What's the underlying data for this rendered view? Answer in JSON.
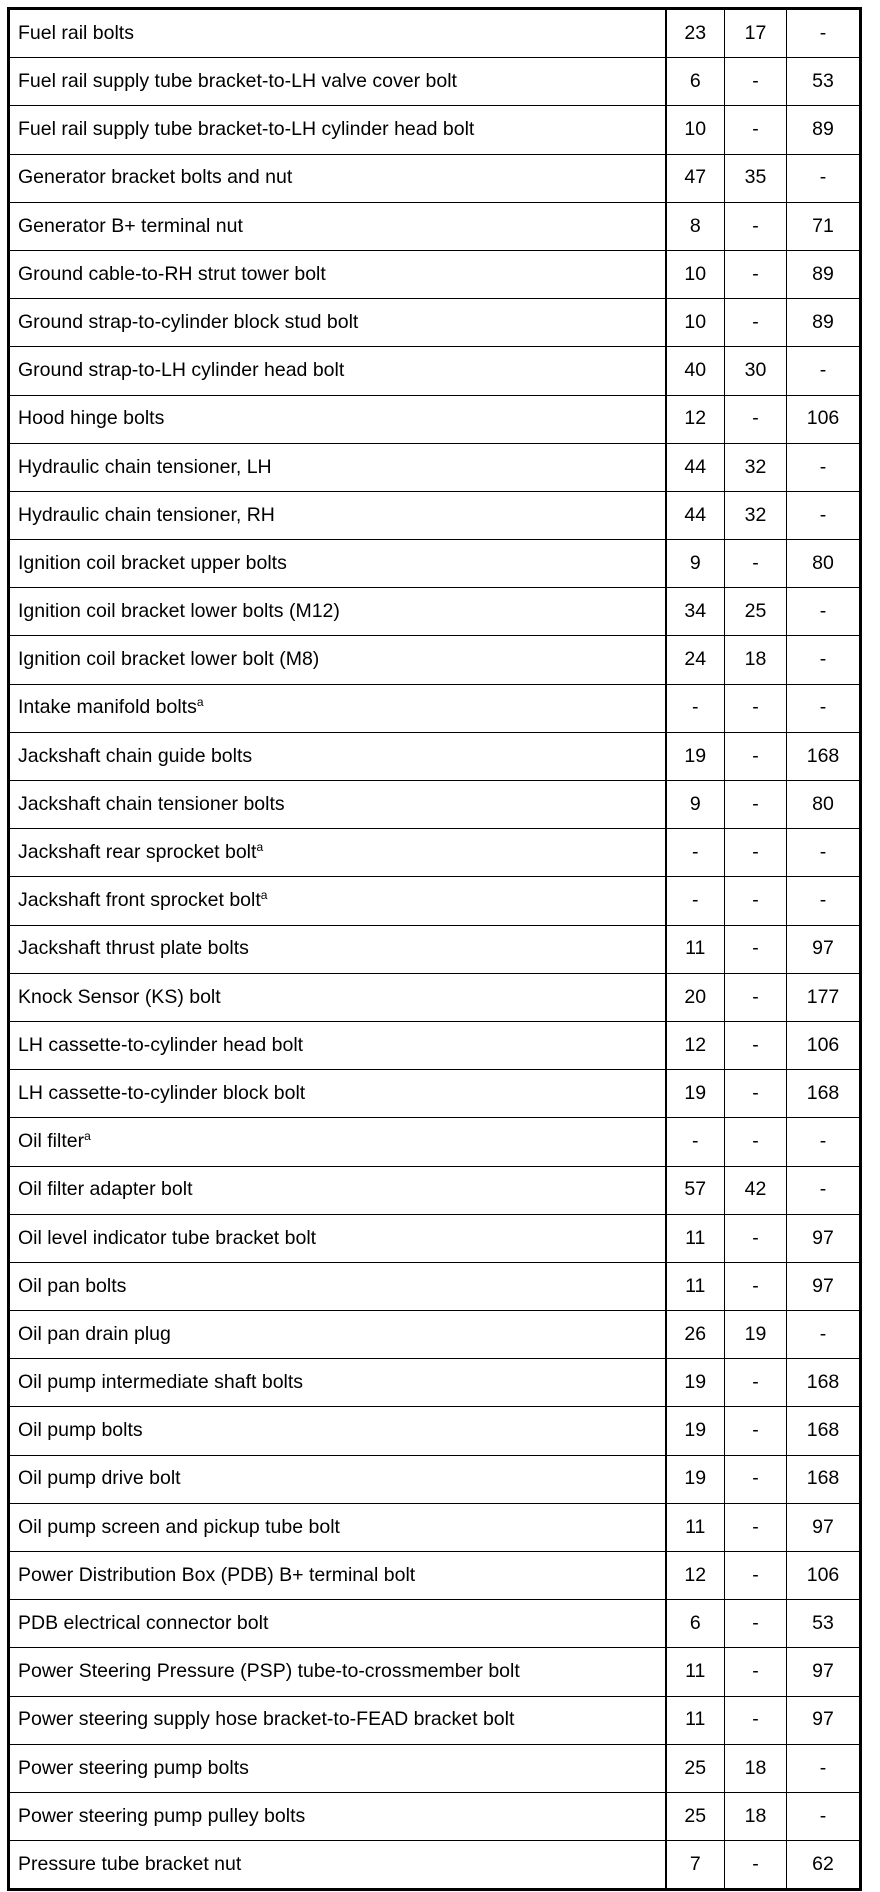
{
  "table": {
    "rows": [
      {
        "name": "Fuel rail bolts",
        "nm": "23",
        "lbft": "17",
        "lbin": "-"
      },
      {
        "name": "Fuel rail supply tube bracket-to-LH valve cover bolt",
        "nm": "6",
        "lbft": "-",
        "lbin": "53"
      },
      {
        "name": "Fuel rail supply tube bracket-to-LH cylinder head bolt",
        "nm": "10",
        "lbft": "-",
        "lbin": "89"
      },
      {
        "name": "Generator bracket bolts and nut",
        "nm": "47",
        "lbft": "35",
        "lbin": "-"
      },
      {
        "name": "Generator B+ terminal nut",
        "nm": "8",
        "lbft": "-",
        "lbin": "71"
      },
      {
        "name": "Ground cable-to-RH strut tower bolt",
        "nm": "10",
        "lbft": "-",
        "lbin": "89"
      },
      {
        "name": "Ground strap-to-cylinder block stud bolt",
        "nm": "10",
        "lbft": "-",
        "lbin": "89"
      },
      {
        "name": "Ground strap-to-LH cylinder head bolt",
        "nm": "40",
        "lbft": "30",
        "lbin": "-"
      },
      {
        "name": "Hood hinge bolts",
        "nm": "12",
        "lbft": "-",
        "lbin": "106"
      },
      {
        "name": "Hydraulic chain tensioner, LH",
        "nm": "44",
        "lbft": "32",
        "lbin": "-"
      },
      {
        "name": "Hydraulic chain tensioner, RH",
        "nm": "44",
        "lbft": "32",
        "lbin": "-"
      },
      {
        "name": "Ignition coil bracket upper bolts",
        "nm": "9",
        "lbft": "-",
        "lbin": "80"
      },
      {
        "name": "Ignition coil bracket lower bolts (M12)",
        "nm": "34",
        "lbft": "25",
        "lbin": "-"
      },
      {
        "name": "Ignition coil bracket lower bolt (M8)",
        "nm": "24",
        "lbft": "18",
        "lbin": "-"
      },
      {
        "name": "Intake manifold bolts",
        "sup": "a",
        "nm": "-",
        "lbft": "-",
        "lbin": "-"
      },
      {
        "name": "Jackshaft chain guide bolts",
        "nm": "19",
        "lbft": "-",
        "lbin": "168"
      },
      {
        "name": "Jackshaft chain tensioner bolts",
        "nm": "9",
        "lbft": "-",
        "lbin": "80"
      },
      {
        "name": "Jackshaft rear sprocket bolt",
        "sup": "a",
        "nm": "-",
        "lbft": "-",
        "lbin": "-"
      },
      {
        "name": "Jackshaft front sprocket bolt",
        "sup": "a",
        "nm": "-",
        "lbft": "-",
        "lbin": "-"
      },
      {
        "name": "Jackshaft thrust plate bolts",
        "nm": "11",
        "lbft": "-",
        "lbin": "97"
      },
      {
        "name": "Knock Sensor (KS) bolt",
        "nm": "20",
        "lbft": "-",
        "lbin": "177"
      },
      {
        "name": "LH cassette-to-cylinder head bolt",
        "nm": "12",
        "lbft": "-",
        "lbin": "106"
      },
      {
        "name": "LH cassette-to-cylinder block bolt",
        "nm": "19",
        "lbft": "-",
        "lbin": "168"
      },
      {
        "name": "Oil filter",
        "sup": "a",
        "nm": "-",
        "lbft": "-",
        "lbin": "-"
      },
      {
        "name": "Oil filter adapter bolt",
        "nm": "57",
        "lbft": "42",
        "lbin": "-"
      },
      {
        "name": "Oil level indicator tube bracket bolt",
        "nm": "11",
        "lbft": "-",
        "lbin": "97"
      },
      {
        "name": "Oil pan bolts",
        "nm": "11",
        "lbft": "-",
        "lbin": "97"
      },
      {
        "name": "Oil pan drain plug",
        "nm": "26",
        "lbft": "19",
        "lbin": "-"
      },
      {
        "name": "Oil pump intermediate shaft bolts",
        "nm": "19",
        "lbft": "-",
        "lbin": "168"
      },
      {
        "name": "Oil pump bolts",
        "nm": "19",
        "lbft": "-",
        "lbin": "168"
      },
      {
        "name": "Oil pump drive bolt",
        "nm": "19",
        "lbft": "-",
        "lbin": "168"
      },
      {
        "name": "Oil pump screen and pickup tube bolt",
        "nm": "11",
        "lbft": "-",
        "lbin": "97"
      },
      {
        "name": "Power Distribution Box (PDB) B+ terminal bolt",
        "nm": "12",
        "lbft": "-",
        "lbin": "106"
      },
      {
        "name": "PDB electrical connector bolt",
        "nm": "6",
        "lbft": "-",
        "lbin": "53"
      },
      {
        "name": "Power Steering Pressure (PSP) tube-to-crossmember bolt",
        "nm": "11",
        "lbft": "-",
        "lbin": "97"
      },
      {
        "name": "Power steering supply hose bracket-to-FEAD bracket bolt",
        "nm": "11",
        "lbft": "-",
        "lbin": "97"
      },
      {
        "name": "Power steering pump bolts",
        "nm": "25",
        "lbft": "18",
        "lbin": "-"
      },
      {
        "name": "Power steering pump pulley bolts",
        "nm": "25",
        "lbft": "18",
        "lbin": "-"
      },
      {
        "name": "Pressure tube bracket nut",
        "nm": "7",
        "lbft": "-",
        "lbin": "62"
      }
    ]
  }
}
